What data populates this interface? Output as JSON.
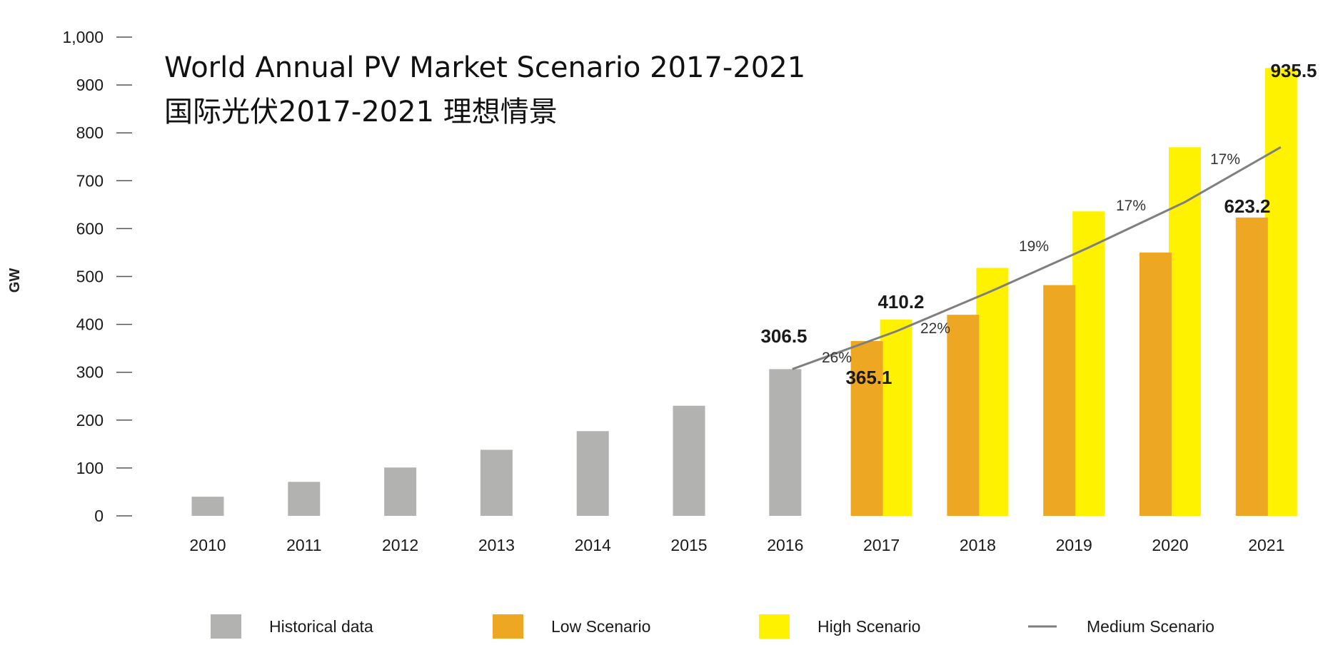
{
  "chart_data": {
    "type": "bar",
    "title": "World Annual PV Market Scenario 2017-2021",
    "subtitle": "国际光伏2017-2021 理想情景",
    "xlabel": "",
    "ylabel": "GW",
    "ylim": [
      0,
      1000
    ],
    "yticks": [
      0,
      100,
      200,
      300,
      400,
      500,
      600,
      700,
      800,
      900,
      1000
    ],
    "ytick_labels": [
      "0",
      "100",
      "200",
      "300",
      "400",
      "500",
      "600",
      "700",
      "800",
      "900",
      "1,000"
    ],
    "categories": [
      "2010",
      "2011",
      "2012",
      "2013",
      "2014",
      "2015",
      "2016",
      "2017",
      "2018",
      "2019",
      "2020",
      "2021"
    ],
    "series": [
      {
        "name": "Historical data",
        "color": "#b2b2b1",
        "values": [
          40,
          71,
          101,
          138,
          177,
          230,
          306.5,
          null,
          null,
          null,
          null,
          null
        ]
      },
      {
        "name": "Low Scenario",
        "color": "#eea723",
        "values": [
          null,
          null,
          null,
          null,
          null,
          null,
          null,
          365.1,
          420,
          482,
          550,
          623.2
        ]
      },
      {
        "name": "High Scenario",
        "color": "#fff200",
        "values": [
          null,
          null,
          null,
          null,
          null,
          null,
          null,
          410.2,
          518,
          636,
          770,
          935.5
        ]
      },
      {
        "name": "Medium Scenario",
        "color": "#7f7f7f",
        "type": "line",
        "x": [
          "2016",
          "2017",
          "2018",
          "2019",
          "2020",
          "2021"
        ],
        "values": [
          306.5,
          385,
          470,
          560,
          655,
          770
        ]
      }
    ],
    "data_labels": [
      {
        "category": "2016",
        "text": "306.5"
      },
      {
        "category": "2017",
        "text": "410.2"
      },
      {
        "category": "2017",
        "text": "365.1"
      },
      {
        "category": "2021",
        "text": "935.5"
      },
      {
        "category": "2021",
        "text": "623.2"
      }
    ],
    "growth_labels": [
      "26%",
      "22%",
      "19%",
      "17%",
      "17%"
    ],
    "grid": false,
    "legend_position": "bottom"
  }
}
